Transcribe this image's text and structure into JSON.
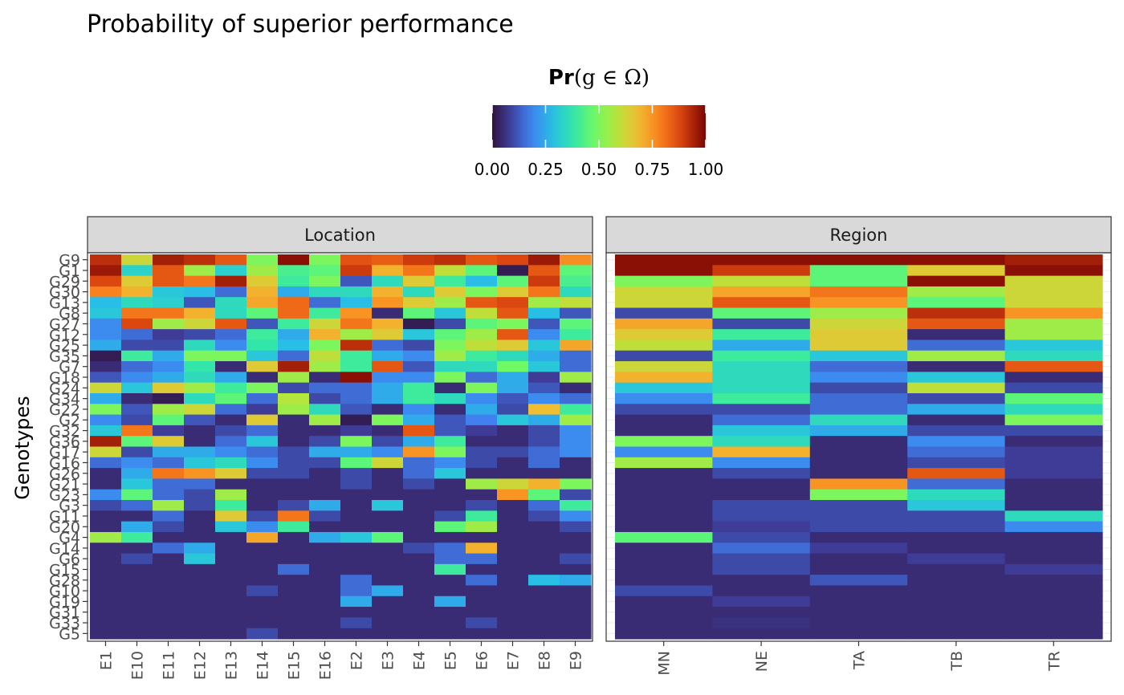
{
  "chart_data": {
    "type": "heatmap",
    "title": "Probability of superior performance",
    "ylabel": "Genotypes",
    "legend": {
      "title_main": "Pr",
      "title_math": "(g ∈ Ω)",
      "ticks": [
        "0.00",
        "0.25",
        "0.50",
        "0.75",
        "1.00"
      ],
      "range": [
        0,
        1
      ],
      "colormap": "turbo"
    },
    "rows": [
      "G9",
      "G1",
      "G29",
      "G30",
      "G13",
      "G8",
      "G27",
      "G12",
      "G25",
      "G35",
      "G7",
      "G18",
      "G24",
      "G34",
      "G22",
      "G2",
      "G32",
      "G36",
      "G17",
      "G16",
      "G26",
      "G21",
      "G23",
      "G3",
      "G11",
      "G20",
      "G4",
      "G14",
      "G6",
      "G15",
      "G28",
      "G10",
      "G19",
      "G31",
      "G33",
      "G5"
    ],
    "panels": [
      {
        "strip": "Location",
        "columns": [
          "E1",
          "E10",
          "E11",
          "E12",
          "E13",
          "E14",
          "E15",
          "E16",
          "E2",
          "E3",
          "E4",
          "E5",
          "E6",
          "E7",
          "E8",
          "E9"
        ],
        "values": [
          [
            0.92,
            0.62,
            0.95,
            0.92,
            0.85,
            0.5,
            0.98,
            0.5,
            0.86,
            0.84,
            0.9,
            0.92,
            0.85,
            0.88,
            0.96,
            0.76
          ],
          [
            0.96,
            0.33,
            0.85,
            0.55,
            0.32,
            0.55,
            0.42,
            0.45,
            0.9,
            0.7,
            0.8,
            0.6,
            0.45,
            0.02,
            0.85,
            0.45
          ],
          [
            0.88,
            0.65,
            0.85,
            0.8,
            0.95,
            0.65,
            0.4,
            0.5,
            0.12,
            0.35,
            0.65,
            0.4,
            0.28,
            0.45,
            0.9,
            0.42
          ],
          [
            0.78,
            0.7,
            0.3,
            0.28,
            0.15,
            0.7,
            0.25,
            0.35,
            0.35,
            0.7,
            0.35,
            0.65,
            0.5,
            0.65,
            0.8,
            0.35
          ],
          [
            0.28,
            0.35,
            0.32,
            0.12,
            0.35,
            0.72,
            0.82,
            0.15,
            0.28,
            0.75,
            0.65,
            0.55,
            0.85,
            0.88,
            0.55,
            0.6
          ],
          [
            0.3,
            0.8,
            0.8,
            0.7,
            0.35,
            0.45,
            0.82,
            0.4,
            0.75,
            0.05,
            0.45,
            0.3,
            0.6,
            0.85,
            0.28,
            0.12
          ],
          [
            0.2,
            0.88,
            0.55,
            0.62,
            0.85,
            0.12,
            0.4,
            0.62,
            0.8,
            0.7,
            0.02,
            0.1,
            0.45,
            0.5,
            0.12,
            0.45
          ],
          [
            0.2,
            0.15,
            0.08,
            0.1,
            0.15,
            0.4,
            0.25,
            0.7,
            0.55,
            0.65,
            0.3,
            0.45,
            0.55,
            0.85,
            0.2,
            0.4
          ],
          [
            0.25,
            0.1,
            0.1,
            0.35,
            0.2,
            0.38,
            0.28,
            0.5,
            0.92,
            0.15,
            0.1,
            0.5,
            0.6,
            0.65,
            0.3,
            0.72
          ],
          [
            0.02,
            0.4,
            0.25,
            0.5,
            0.5,
            0.3,
            0.15,
            0.6,
            0.4,
            0.25,
            0.2,
            0.55,
            0.4,
            0.35,
            0.25,
            0.15
          ],
          [
            0.05,
            0.15,
            0.2,
            0.38,
            0.05,
            0.65,
            0.95,
            0.55,
            0.4,
            0.85,
            0.12,
            0.35,
            0.35,
            0.48,
            0.3,
            0.15
          ],
          [
            0.12,
            0.2,
            0.25,
            0.35,
            0.25,
            0.05,
            0.55,
            0.05,
            0.98,
            0.2,
            0.2,
            0.5,
            0.15,
            0.25,
            0.08,
            0.55
          ],
          [
            0.62,
            0.3,
            0.65,
            0.55,
            0.4,
            0.5,
            0.1,
            0.15,
            0.15,
            0.25,
            0.4,
            0.05,
            0.5,
            0.25,
            0.12,
            0.05
          ],
          [
            0.25,
            0.05,
            0.02,
            0.35,
            0.45,
            0.15,
            0.58,
            0.1,
            0.15,
            0.25,
            0.4,
            0.35,
            0.2,
            0.12,
            0.2,
            0.15
          ],
          [
            0.5,
            0.12,
            0.55,
            0.62,
            0.15,
            0.08,
            0.55,
            0.35,
            0.12,
            0.05,
            0.2,
            0.05,
            0.25,
            0.1,
            0.68,
            0.4
          ],
          [
            0.2,
            0.1,
            0.45,
            0.12,
            0.05,
            0.65,
            0.05,
            0.55,
            0.02,
            0.5,
            0.25,
            0.12,
            0.18,
            0.3,
            0.25,
            0.55
          ],
          [
            0.3,
            0.8,
            0.08,
            0.05,
            0.1,
            0.15,
            0.05,
            0.05,
            0.08,
            0.05,
            0.85,
            0.12,
            0.08,
            0.05,
            0.1,
            0.2
          ],
          [
            0.95,
            0.45,
            0.65,
            0.05,
            0.15,
            0.3,
            0.05,
            0.1,
            0.5,
            0.1,
            0.25,
            0.4,
            0.05,
            0.05,
            0.1,
            0.2
          ],
          [
            0.62,
            0.1,
            0.25,
            0.25,
            0.2,
            0.15,
            0.1,
            0.25,
            0.25,
            0.2,
            0.75,
            0.5,
            0.1,
            0.1,
            0.15,
            0.2
          ],
          [
            0.15,
            0.2,
            0.15,
            0.3,
            0.35,
            0.2,
            0.1,
            0.1,
            0.45,
            0.62,
            0.15,
            0.2,
            0.1,
            0.05,
            0.15,
            0.05
          ],
          [
            0.05,
            0.25,
            0.8,
            0.75,
            0.65,
            0.1,
            0.1,
            0.05,
            0.1,
            0.05,
            0.15,
            0.3,
            0.05,
            0.05,
            0.05,
            0.05
          ],
          [
            0.05,
            0.3,
            0.15,
            0.15,
            0.05,
            0.05,
            0.05,
            0.05,
            0.1,
            0.05,
            0.1,
            0.05,
            0.55,
            0.62,
            0.7,
            0.5
          ],
          [
            0.2,
            0.45,
            0.15,
            0.1,
            0.55,
            0.05,
            0.05,
            0.05,
            0.05,
            0.05,
            0.05,
            0.05,
            0.05,
            0.75,
            0.45,
            0.1
          ],
          [
            0.1,
            0.15,
            0.55,
            0.1,
            0.4,
            0.05,
            0.1,
            0.25,
            0.05,
            0.3,
            0.05,
            0.05,
            0.1,
            0.05,
            0.15,
            0.4
          ],
          [
            0.05,
            0.05,
            0.15,
            0.05,
            0.65,
            0.1,
            0.8,
            0.1,
            0.05,
            0.05,
            0.05,
            0.1,
            0.4,
            0.05,
            0.1,
            0.2
          ],
          [
            0.05,
            0.25,
            0.1,
            0.05,
            0.3,
            0.2,
            0.4,
            0.05,
            0.05,
            0.05,
            0.05,
            0.45,
            0.55,
            0.05,
            0.05,
            0.1
          ],
          [
            0.55,
            0.4,
            0.05,
            0.05,
            0.05,
            0.72,
            0.05,
            0.25,
            0.3,
            0.45,
            0.05,
            0.05,
            0.05,
            0.05,
            0.05,
            0.05
          ],
          [
            0.05,
            0.05,
            0.15,
            0.25,
            0.05,
            0.05,
            0.05,
            0.05,
            0.05,
            0.05,
            0.1,
            0.15,
            0.7,
            0.05,
            0.05,
            0.05
          ],
          [
            0.05,
            0.1,
            0.05,
            0.3,
            0.05,
            0.05,
            0.05,
            0.05,
            0.05,
            0.05,
            0.05,
            0.15,
            0.15,
            0.05,
            0.05,
            0.1
          ],
          [
            0.05,
            0.05,
            0.05,
            0.05,
            0.05,
            0.05,
            0.15,
            0.05,
            0.05,
            0.05,
            0.05,
            0.4,
            0.05,
            0.05,
            0.05,
            0.05
          ],
          [
            0.05,
            0.05,
            0.05,
            0.05,
            0.05,
            0.05,
            0.05,
            0.05,
            0.15,
            0.05,
            0.05,
            0.05,
            0.15,
            0.05,
            0.28,
            0.25
          ],
          [
            0.05,
            0.05,
            0.05,
            0.05,
            0.05,
            0.1,
            0.05,
            0.05,
            0.15,
            0.25,
            0.05,
            0.05,
            0.05,
            0.05,
            0.05,
            0.05
          ],
          [
            0.05,
            0.05,
            0.05,
            0.05,
            0.05,
            0.05,
            0.05,
            0.05,
            0.25,
            0.05,
            0.05,
            0.25,
            0.05,
            0.05,
            0.05,
            0.05
          ],
          [
            0.05,
            0.05,
            0.05,
            0.05,
            0.05,
            0.05,
            0.05,
            0.05,
            0.05,
            0.05,
            0.05,
            0.05,
            0.05,
            0.05,
            0.05,
            0.05
          ],
          [
            0.05,
            0.05,
            0.05,
            0.05,
            0.05,
            0.05,
            0.05,
            0.05,
            0.1,
            0.05,
            0.05,
            0.05,
            0.1,
            0.05,
            0.05,
            0.05
          ],
          [
            0.05,
            0.05,
            0.05,
            0.05,
            0.05,
            0.1,
            0.05,
            0.05,
            0.05,
            0.05,
            0.05,
            0.05,
            0.05,
            0.05,
            0.05,
            0.05
          ]
        ]
      },
      {
        "strip": "Region",
        "columns": [
          "MN",
          "NE",
          "TA",
          "TB",
          "TR"
        ],
        "values": [
          [
            0.98,
            0.98,
            0.98,
            0.98,
            0.95
          ],
          [
            0.98,
            0.9,
            0.45,
            0.65,
            0.98
          ],
          [
            0.5,
            0.6,
            0.45,
            0.98,
            0.62
          ],
          [
            0.62,
            0.72,
            0.8,
            0.55,
            0.62
          ],
          [
            0.62,
            0.85,
            0.75,
            0.45,
            0.62
          ],
          [
            0.1,
            0.45,
            0.55,
            0.92,
            0.75
          ],
          [
            0.72,
            0.1,
            0.62,
            0.85,
            0.55
          ],
          [
            0.65,
            0.4,
            0.65,
            0.05,
            0.55
          ],
          [
            0.6,
            0.25,
            0.65,
            0.15,
            0.3
          ],
          [
            0.1,
            0.4,
            0.3,
            0.55,
            0.35
          ],
          [
            0.62,
            0.35,
            0.15,
            0.05,
            0.85
          ],
          [
            0.7,
            0.35,
            0.2,
            0.3,
            0.05
          ],
          [
            0.3,
            0.35,
            0.1,
            0.6,
            0.1
          ],
          [
            0.2,
            0.4,
            0.15,
            0.1,
            0.45
          ],
          [
            0.1,
            0.1,
            0.15,
            0.25,
            0.35
          ],
          [
            0.05,
            0.15,
            0.35,
            0.05,
            0.5
          ],
          [
            0.05,
            0.3,
            0.25,
            0.1,
            0.1
          ],
          [
            0.5,
            0.35,
            0.05,
            0.2,
            0.05
          ],
          [
            0.2,
            0.7,
            0.05,
            0.15,
            0.08
          ],
          [
            0.55,
            0.2,
            0.05,
            0.1,
            0.08
          ],
          [
            0.05,
            0.1,
            0.05,
            0.85,
            0.08
          ],
          [
            0.05,
            0.05,
            0.75,
            0.15,
            0.05
          ],
          [
            0.05,
            0.05,
            0.5,
            0.35,
            0.05
          ],
          [
            0.05,
            0.1,
            0.1,
            0.3,
            0.05
          ],
          [
            0.05,
            0.1,
            0.1,
            0.1,
            0.35
          ],
          [
            0.05,
            0.08,
            0.1,
            0.1,
            0.2
          ],
          [
            0.45,
            0.1,
            0.05,
            0.05,
            0.05
          ],
          [
            0.05,
            0.15,
            0.08,
            0.05,
            0.05
          ],
          [
            0.05,
            0.1,
            0.05,
            0.08,
            0.05
          ],
          [
            0.05,
            0.1,
            0.05,
            0.05,
            0.08
          ],
          [
            0.05,
            0.05,
            0.12,
            0.05,
            0.05
          ],
          [
            0.1,
            0.05,
            0.05,
            0.05,
            0.05
          ],
          [
            0.05,
            0.08,
            0.05,
            0.05,
            0.05
          ],
          [
            0.05,
            0.05,
            0.05,
            0.05,
            0.05
          ],
          [
            0.05,
            0.06,
            0.05,
            0.05,
            0.05
          ],
          [
            0.05,
            0.05,
            0.05,
            0.05,
            0.05
          ]
        ]
      }
    ]
  }
}
